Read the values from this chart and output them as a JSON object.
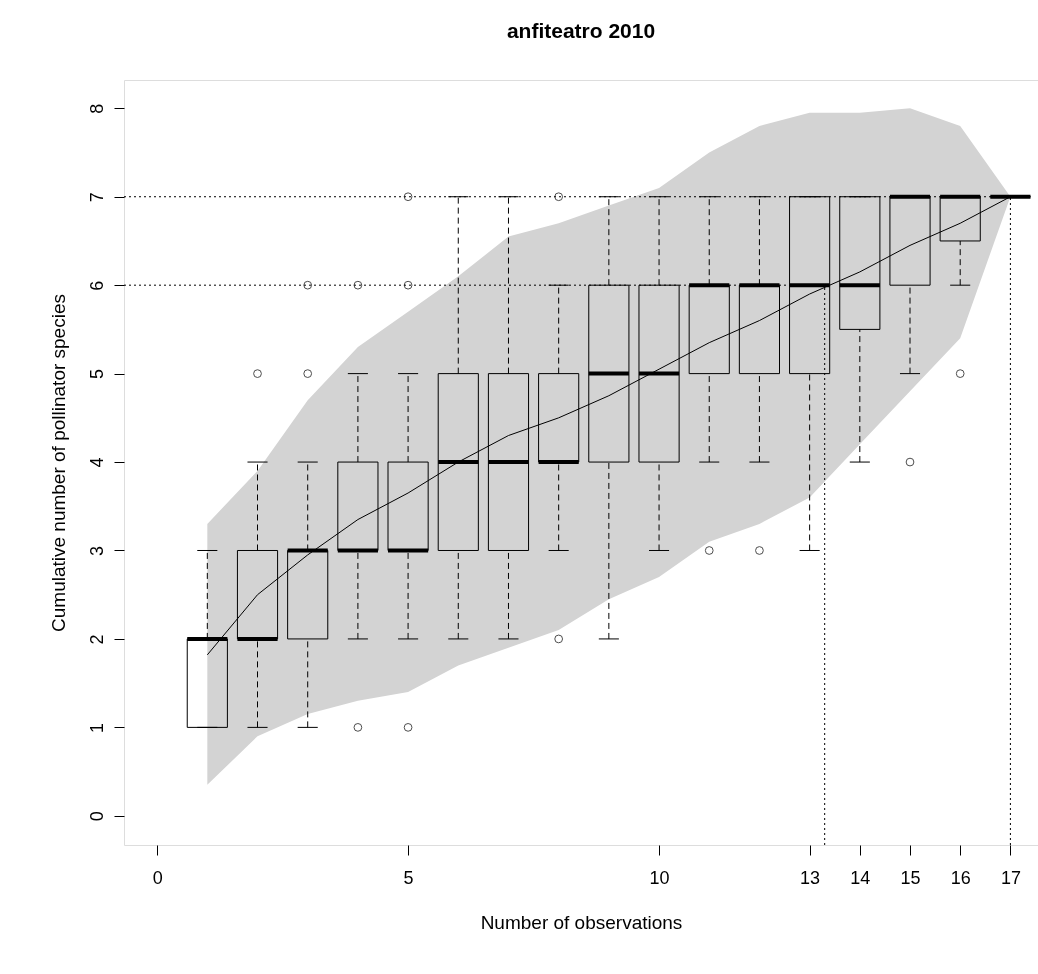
{
  "chart_data": {
    "type": "box",
    "title": "anfiteatro 2010",
    "xlabel": "Number of observations",
    "ylabel": "Cumulative number of pollinator species",
    "x": [
      1,
      2,
      3,
      4,
      5,
      6,
      7,
      8,
      9,
      10,
      11,
      12,
      13,
      14,
      15,
      16,
      17
    ],
    "boxes": [
      {
        "low": 1,
        "q1": 1,
        "median": 2,
        "q3": 2,
        "high": 3
      },
      {
        "low": 1,
        "q1": 2,
        "median": 2,
        "q3": 3,
        "high": 4,
        "outliers": [
          5
        ]
      },
      {
        "low": 1,
        "q1": 2,
        "median": 3,
        "q3": 3,
        "high": 4,
        "outliers": [
          5,
          6
        ]
      },
      {
        "low": 2,
        "q1": 3,
        "median": 3,
        "q3": 4,
        "high": 5,
        "outliers": [
          1,
          6
        ]
      },
      {
        "low": 2,
        "q1": 3,
        "median": 3,
        "q3": 4,
        "high": 5,
        "outliers": [
          1,
          6,
          7
        ]
      },
      {
        "low": 2,
        "q1": 3,
        "median": 4,
        "q3": 5,
        "high": 7
      },
      {
        "low": 2,
        "q1": 3,
        "median": 4,
        "q3": 5,
        "high": 7
      },
      {
        "low": 3,
        "q1": 4,
        "median": 4,
        "q3": 5,
        "high": 6,
        "outliers": [
          2,
          7
        ]
      },
      {
        "low": 2,
        "q1": 4,
        "median": 5,
        "q3": 6,
        "high": 7
      },
      {
        "low": 3,
        "q1": 4,
        "median": 5,
        "q3": 6,
        "high": 7
      },
      {
        "low": 4,
        "q1": 5,
        "median": 6,
        "q3": 6,
        "high": 7,
        "outliers": [
          3
        ]
      },
      {
        "low": 4,
        "q1": 5,
        "median": 6,
        "q3": 6,
        "high": 7,
        "outliers": [
          3
        ]
      },
      {
        "low": 3,
        "q1": 5,
        "median": 6,
        "q3": 7,
        "high": 7
      },
      {
        "low": 4,
        "q1": 5.5,
        "median": 6,
        "q3": 7,
        "high": 7
      },
      {
        "low": 5,
        "q1": 6,
        "median": 7,
        "q3": 7,
        "high": 7,
        "outliers": [
          4
        ]
      },
      {
        "low": 6,
        "q1": 6.5,
        "median": 7,
        "q3": 7,
        "high": 7,
        "outliers": [
          5
        ]
      },
      {
        "low": 7,
        "q1": 7,
        "median": 7,
        "q3": 7,
        "high": 7
      }
    ],
    "series": [
      {
        "type": "line",
        "color": "#000000",
        "line_style": "solid",
        "x": [
          1,
          2,
          3,
          4,
          5,
          6,
          7,
          8,
          9,
          10,
          11,
          12,
          13,
          14,
          15,
          16,
          17
        ],
        "values": [
          1.82,
          2.5,
          2.95,
          3.35,
          3.65,
          4.0,
          4.3,
          4.5,
          4.75,
          5.05,
          5.35,
          5.6,
          5.9,
          6.15,
          6.45,
          6.7,
          7.0
        ],
        "lower": [
          0.35,
          0.9,
          1.15,
          1.3,
          1.4,
          1.7,
          1.9,
          2.1,
          2.45,
          2.7,
          3.1,
          3.3,
          3.6,
          4.2,
          4.8,
          5.4,
          7.0
        ],
        "upper": [
          3.3,
          3.9,
          4.7,
          5.3,
          5.7,
          6.1,
          6.55,
          6.7,
          6.9,
          7.1,
          7.5,
          7.8,
          7.95,
          7.95,
          8.0,
          7.8,
          7.0
        ]
      }
    ],
    "ref_lines": [
      {
        "axis": "y",
        "value": 7,
        "line_style": "dotted"
      },
      {
        "axis": "x",
        "value": 17,
        "line_style": "dotted"
      },
      {
        "axis": "y",
        "value": 6,
        "line_style": "dotted"
      },
      {
        "axis": "x",
        "value": 13.3,
        "line_style": "dotted"
      }
    ],
    "xlim": [
      -0.66,
      17.55
    ],
    "ylim": [
      -0.33,
      8.32
    ],
    "xticks": [
      0,
      5,
      10,
      13,
      14,
      15,
      16,
      17
    ],
    "yticks": [
      0,
      1,
      2,
      3,
      4,
      5,
      6,
      7,
      8
    ],
    "grid": false
  }
}
